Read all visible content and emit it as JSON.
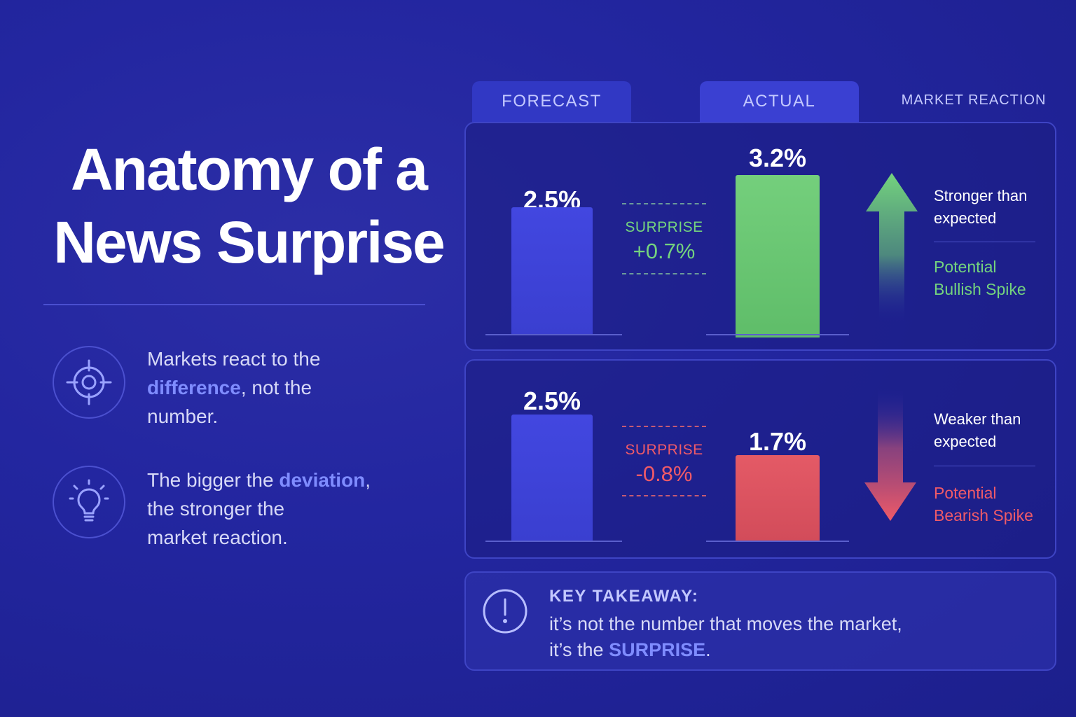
{
  "title": {
    "line1": "Anatomy of a",
    "line2": "News Surprise"
  },
  "points": [
    {
      "icon": "target-icon",
      "pre": "Markets react to the",
      "highlight": "difference",
      "post": ", not the",
      "line3": "number."
    },
    {
      "icon": "lightbulb-icon",
      "pre": "The bigger the",
      "highlight": "deviation",
      "post": ",",
      "line2": "the stronger the",
      "line3": "market reaction."
    }
  ],
  "tabs": {
    "forecast": "FORECAST",
    "actual": "ACTUAL",
    "reaction": "MARKET REACTION"
  },
  "scenarios": [
    {
      "forecast_label": "2.5%",
      "actual_label": "3.2%",
      "surprise_label": "SURPRISE",
      "surprise_value": "+0.7%",
      "reaction_desc_1": "Stronger than",
      "reaction_desc_2": "expected",
      "reaction_out_1": "Potential",
      "reaction_out_2": "Bullish Spike",
      "direction": "up"
    },
    {
      "forecast_label": "2.5%",
      "actual_label": "1.7%",
      "surprise_label": "SURPRISE",
      "surprise_value": "-0.8%",
      "reaction_desc_1": "Weaker than",
      "reaction_desc_2": "expected",
      "reaction_out_1": "Potential",
      "reaction_out_2": "Bearish Spike",
      "direction": "down"
    }
  ],
  "chart_data": {
    "type": "bar",
    "categories": [
      "FORECAST",
      "ACTUAL"
    ],
    "series": [
      {
        "values": [
          2.5,
          3.2
        ]
      },
      {
        "values": [
          2.5,
          1.7
        ]
      }
    ]
  },
  "key_takeaway": {
    "heading": "KEY TAKEAWAY:",
    "line1": "it’s not the number that moves the market,",
    "line2_pre": "it’s the",
    "line2_highlight": "SURPRISE",
    "line2_post": "."
  },
  "colors": {
    "background": "#2326a0",
    "forecast_bar": "#4247e0",
    "positive": "#74d37e",
    "negative": "#ef5a68",
    "highlight": "#7f8cff"
  }
}
